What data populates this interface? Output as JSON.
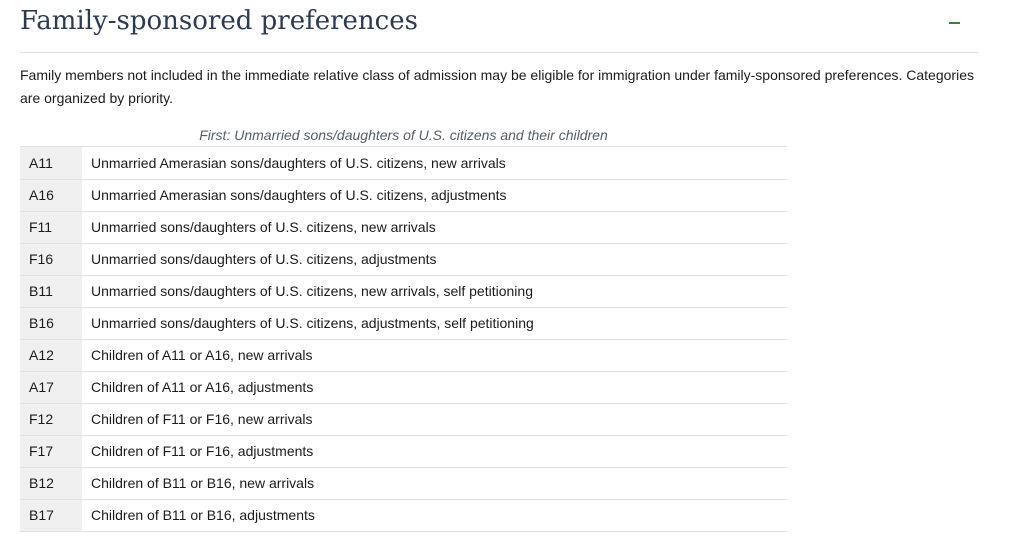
{
  "section": {
    "title": "Family-sponsored preferences",
    "toggle_icon": "minus-icon",
    "accent_color": "#2e8540",
    "title_color": "#2b3a55"
  },
  "intro": "Family members not included in the immediate relative class of admission may be eligible for immigration under family-sponsored preferences. Categories are organized by priority.",
  "table": {
    "caption": "First: Unmarried sons/daughters of U.S. citizens and their children",
    "rows": [
      {
        "code": "A11",
        "description": "Unmarried Amerasian sons/daughters of U.S. citizens, new arrivals"
      },
      {
        "code": "A16",
        "description": "Unmarried Amerasian sons/daughters of U.S. citizens, adjustments"
      },
      {
        "code": "F11",
        "description": "Unmarried sons/daughters of U.S. citizens, new arrivals"
      },
      {
        "code": "F16",
        "description": "Unmarried sons/daughters of U.S. citizens, adjustments"
      },
      {
        "code": "B11",
        "description": "Unmarried sons/daughters of U.S. citizens, new arrivals, self petitioning"
      },
      {
        "code": "B16",
        "description": "Unmarried sons/daughters of U.S. citizens, adjustments, self petitioning"
      },
      {
        "code": "A12",
        "description": "Children of A11 or A16, new arrivals"
      },
      {
        "code": "A17",
        "description": "Children of A11 or A16, adjustments"
      },
      {
        "code": "F12",
        "description": "Children of F11 or F16, new arrivals"
      },
      {
        "code": "F17",
        "description": "Children of F11 or F16, adjustments"
      },
      {
        "code": "B12",
        "description": "Children of B11 or B16, new arrivals"
      },
      {
        "code": "B17",
        "description": "Children of B11 or B16, adjustments"
      }
    ]
  }
}
